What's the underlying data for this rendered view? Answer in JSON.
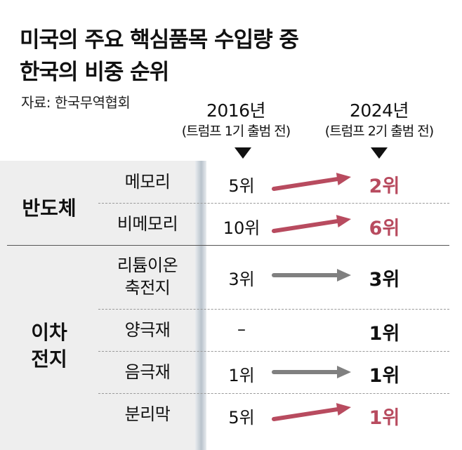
{
  "title": {
    "line1": "미국의 주요 핵심품목 수입량 중",
    "line2": "한국의 비중 순위"
  },
  "source": "자료: 한국무역협회",
  "columns": [
    {
      "year": "2016년",
      "note": "(트럼프 1기 출범 전)"
    },
    {
      "year": "2024년",
      "note": "(트럼프 2기 출범 전)"
    }
  ],
  "colors": {
    "up": "#b84b5f",
    "same": "#808080",
    "rank_same": "#111111",
    "rank_up": "#b84b5f"
  },
  "chart_data": {
    "type": "table",
    "groups": [
      {
        "name": "반도체",
        "items": [
          {
            "item": "메모리",
            "rank_2016": "5위",
            "rank_2024": "2위",
            "trend": "up"
          },
          {
            "item": "비메모리",
            "rank_2016": "10위",
            "rank_2024": "6위",
            "trend": "up"
          }
        ]
      },
      {
        "name_line1": "이차",
        "name_line2": "전지",
        "items": [
          {
            "item_line1": "리튬이온",
            "item_line2": "축전지",
            "rank_2016": "3위",
            "rank_2024": "3위",
            "trend": "same"
          },
          {
            "item": "양극재",
            "rank_2016": "–",
            "rank_2024": "1위",
            "trend": "none"
          },
          {
            "item": "음극재",
            "rank_2016": "1위",
            "rank_2024": "1위",
            "trend": "same"
          },
          {
            "item": "분리막",
            "rank_2016": "5위",
            "rank_2024": "1위",
            "trend": "up"
          }
        ]
      }
    ]
  }
}
